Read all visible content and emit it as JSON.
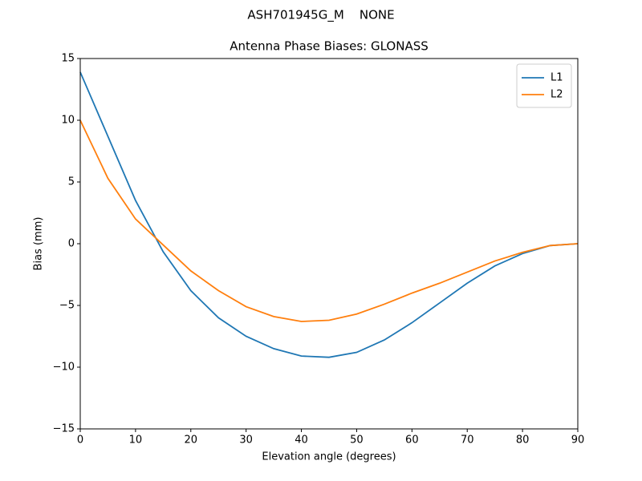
{
  "chart_data": {
    "type": "line",
    "suptitle": "ASH701945G_M    NONE",
    "title": "Antenna Phase Biases: GLONASS",
    "xlabel": "Elevation angle (degrees)",
    "ylabel": "Bias (mm)",
    "x": [
      0,
      5,
      10,
      15,
      20,
      25,
      30,
      35,
      40,
      45,
      50,
      55,
      60,
      65,
      70,
      75,
      80,
      85,
      90
    ],
    "series": [
      {
        "name": "L1",
        "color": "#1f77b4",
        "values": [
          13.9,
          8.7,
          3.5,
          -0.65,
          -3.8,
          -6.0,
          -7.5,
          -8.5,
          -9.1,
          -9.2,
          -8.8,
          -7.8,
          -6.4,
          -4.8,
          -3.2,
          -1.8,
          -0.8,
          -0.15,
          0
        ]
      },
      {
        "name": "L2",
        "color": "#ff7f0e",
        "values": [
          10.0,
          5.3,
          2.0,
          -0.1,
          -2.2,
          -3.8,
          -5.1,
          -5.9,
          -6.3,
          -6.2,
          -5.7,
          -4.9,
          -4.0,
          -3.2,
          -2.3,
          -1.4,
          -0.7,
          -0.15,
          0
        ]
      }
    ],
    "xlim": [
      0,
      90
    ],
    "xticks": [
      0,
      10,
      20,
      30,
      40,
      50,
      60,
      70,
      80,
      90
    ],
    "ylim": [
      -15,
      15
    ],
    "yticks": [
      {
        "value": -15,
        "label": "−15"
      },
      {
        "value": -10,
        "label": "−10"
      },
      {
        "value": -5,
        "label": "−5"
      },
      0,
      5,
      10,
      15
    ],
    "legend": "upper right"
  }
}
